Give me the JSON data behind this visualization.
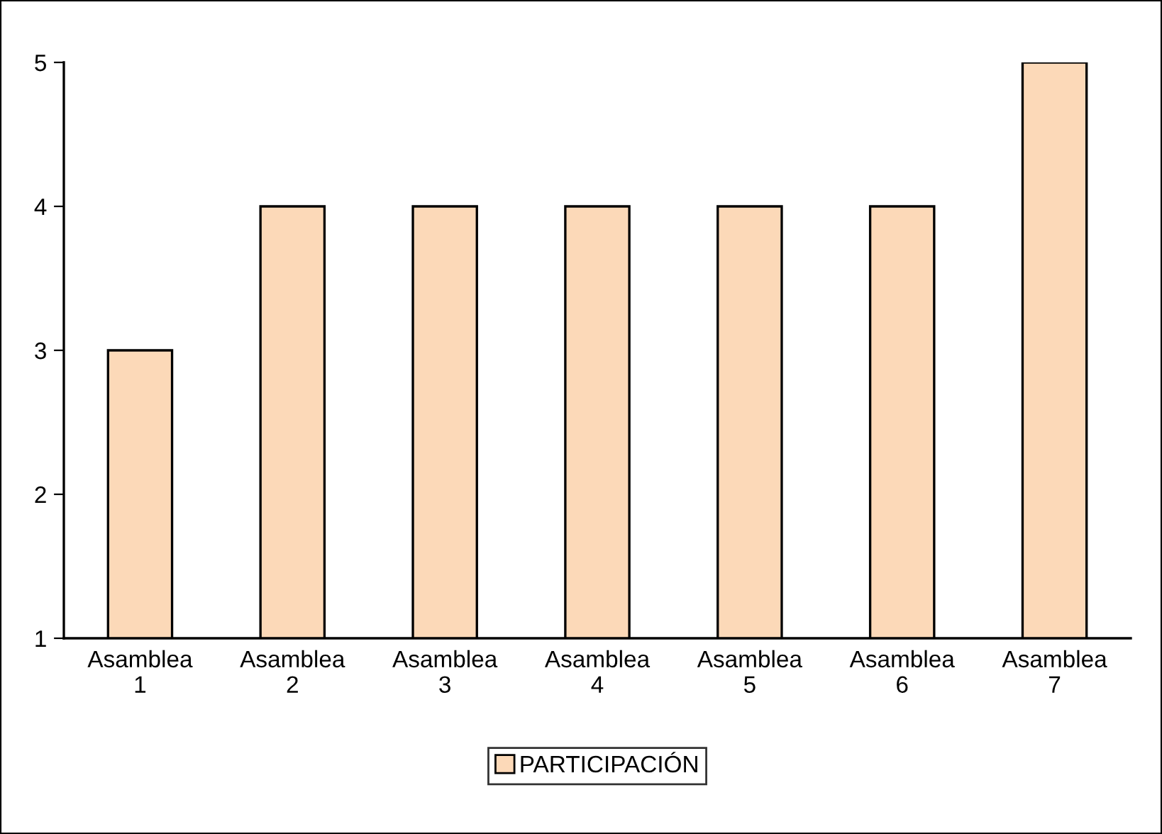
{
  "chart_data": {
    "type": "bar",
    "categories": [
      "Asamblea\n1",
      "Asamblea\n2",
      "Asamblea\n3",
      "Asamblea\n4",
      "Asamblea\n5",
      "Asamblea\n6",
      "Asamblea\n7"
    ],
    "series": [
      {
        "name": "PARTICIPACIÓN",
        "color": "#fcd9b8",
        "values": [
          3,
          4,
          4,
          4,
          4,
          4,
          5
        ]
      }
    ],
    "ylim": [
      1,
      5
    ],
    "yticks": [
      1,
      2,
      3,
      4,
      5
    ],
    "grid": false,
    "legend": "bottom"
  }
}
